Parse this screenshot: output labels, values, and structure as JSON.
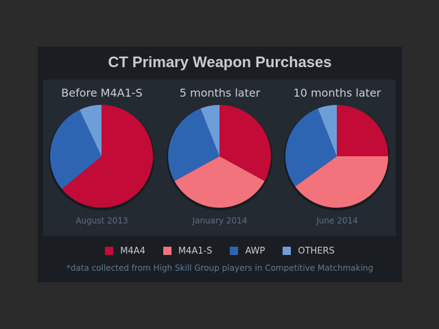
{
  "colors": {
    "background": "#2b2b2b",
    "card": "#1a1e23",
    "inner_panel": "#242a31",
    "m4a4": "#c20b36",
    "m4a1s": "#f2737b",
    "awp": "#2e65b3",
    "others": "#6e9ed8"
  },
  "header": {
    "title": "CT Primary Weapon Purchases"
  },
  "legend": [
    {
      "label": "M4A4",
      "color": "#c20b36"
    },
    {
      "label": "M4A1-S",
      "color": "#f2737b"
    },
    {
      "label": "AWP",
      "color": "#2e65b3"
    },
    {
      "label": "OTHERS",
      "color": "#6e9ed8"
    }
  ],
  "footnote": "*data collected from High Skill Group players in Competitive Matchmaking",
  "chart_data": [
    {
      "type": "pie",
      "title": "Before M4A1-S",
      "caption": "August 2013",
      "labels": [
        "M4A4",
        "M4A1-S",
        "AWP",
        "OTHERS"
      ],
      "values": [
        64,
        0,
        29,
        7
      ]
    },
    {
      "type": "pie",
      "title": "5 months later",
      "caption": "January 2014",
      "labels": [
        "M4A4",
        "M4A1-S",
        "AWP",
        "OTHERS"
      ],
      "values": [
        33,
        34,
        27,
        6
      ]
    },
    {
      "type": "pie",
      "title": "10 months later",
      "caption": "June 2014",
      "labels": [
        "M4A4",
        "M4A1-S",
        "AWP",
        "OTHERS"
      ],
      "values": [
        25,
        40,
        29,
        6
      ]
    }
  ]
}
